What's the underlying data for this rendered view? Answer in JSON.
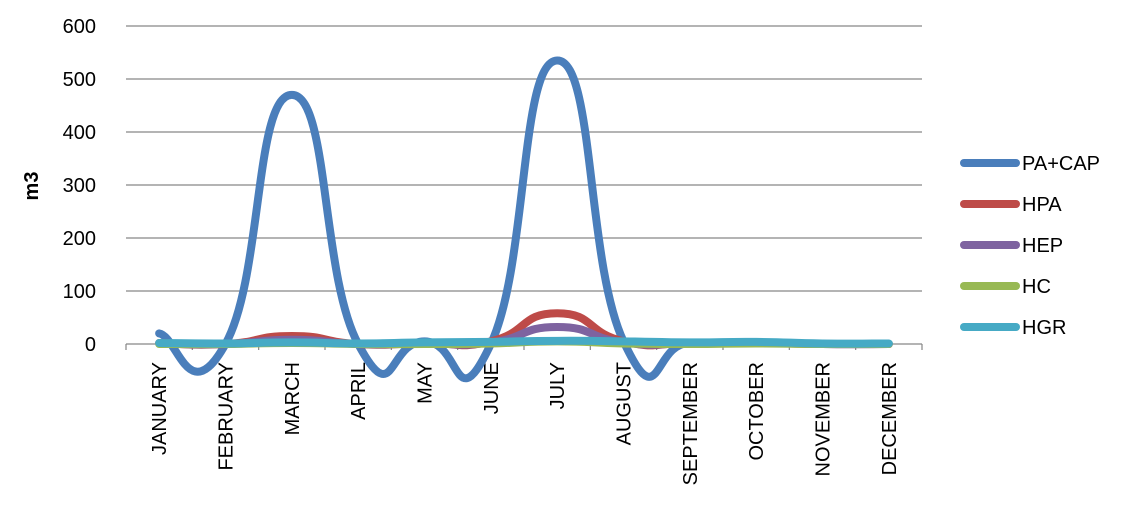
{
  "chart_data": {
    "type": "line",
    "ylabel": "m3",
    "ylim": [
      0,
      600
    ],
    "y_ticks": [
      0,
      100,
      200,
      300,
      400,
      500,
      600
    ],
    "grid": true,
    "legend_position": "right",
    "categories": [
      "JANUARY",
      "FEBRUARY",
      "MARCH",
      "APRIL",
      "MAY",
      "JUNE",
      "JULY",
      "AUGUST",
      "SEPTEMBER",
      "OCTOBER",
      "NOVEMBER",
      "DECEMBER"
    ],
    "series": [
      {
        "name": "PA+CAP",
        "color": "#4A7EBB",
        "values": [
          20,
          0,
          470,
          0,
          5,
          0,
          535,
          5,
          2,
          3,
          0,
          0
        ]
      },
      {
        "name": "HPA",
        "color": "#BE4B48",
        "values": [
          2,
          0,
          15,
          0,
          2,
          5,
          58,
          5,
          2,
          3,
          0,
          0
        ]
      },
      {
        "name": "HEP",
        "color": "#7E63A0",
        "values": [
          1,
          0,
          8,
          0,
          1,
          3,
          32,
          3,
          1,
          2,
          0,
          0
        ]
      },
      {
        "name": "HC",
        "color": "#98B954",
        "values": [
          0,
          0,
          2,
          0,
          0,
          1,
          5,
          1,
          0,
          1,
          0,
          0
        ]
      },
      {
        "name": "HGR",
        "color": "#46AAC5",
        "values": [
          2,
          1,
          3,
          1,
          3,
          4,
          6,
          5,
          3,
          4,
          1,
          1
        ]
      }
    ]
  }
}
